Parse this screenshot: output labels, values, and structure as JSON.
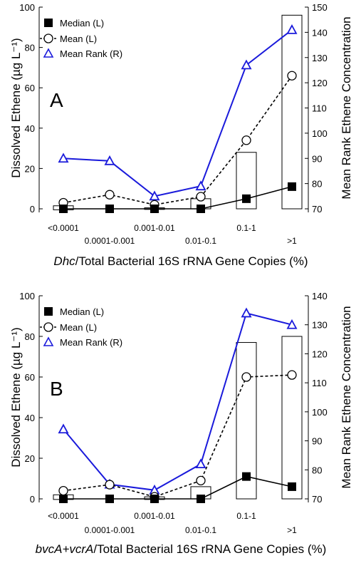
{
  "chart_data": [
    {
      "type": "line",
      "panel_label": "A",
      "xlabel_italic": "Dhc",
      "xlabel_rest": "/Total Bacterial 16S rRNA Gene Copies (%)",
      "ylabel": "Dissolved Ethene (µg L⁻¹)",
      "ylabel_right": "Mean Rank Ethene Concentration",
      "categories": [
        "<0.0001",
        "0.0001-0.001",
        "0.001-0.01",
        "0.01-0.1",
        "0.1-1",
        ">1"
      ],
      "ylim": [
        0,
        100
      ],
      "y_ticks": [
        0,
        20,
        40,
        60,
        80,
        100
      ],
      "y2lim": [
        70,
        150
      ],
      "y2_ticks": [
        70,
        80,
        90,
        100,
        110,
        120,
        130,
        140,
        150
      ],
      "legend": {
        "position": "top-left",
        "entries": [
          "Median (L)",
          "Mean (L)",
          "Mean Rank (R)"
        ]
      },
      "series": [
        {
          "name": "Median (L)",
          "axis": "left",
          "color": "#000000",
          "values": [
            0,
            0,
            0,
            0,
            5,
            11
          ]
        },
        {
          "name": "Mean (L)",
          "axis": "left",
          "color": "#000000",
          "values": [
            3,
            7,
            2,
            6,
            34,
            66
          ]
        },
        {
          "name": "Mean Rank (R)",
          "axis": "right",
          "color": "#1a1adb",
          "values": [
            90,
            89,
            75,
            79,
            127,
            141
          ]
        }
      ],
      "boxes": [
        [
          -0.5,
          1.5
        ],
        [
          null,
          null
        ],
        [
          -0.3,
          0.5
        ],
        [
          0,
          5
        ],
        [
          0,
          28
        ],
        [
          0,
          96
        ]
      ]
    },
    {
      "type": "line",
      "panel_label": "B",
      "xlabel_italic": "bvcA+vcrA",
      "xlabel_rest": "/Total Bacterial 16S rRNA Gene Copies (%)",
      "ylabel": "Dissolved Ethene (µg L⁻¹)",
      "ylabel_right": "Mean Rank Ethene Concentration",
      "categories": [
        "<0.0001",
        "0.0001-0.001",
        "0.001-0.01",
        "0.01-0.1",
        "0.1-1",
        ">1"
      ],
      "ylim": [
        0,
        100
      ],
      "y_ticks": [
        0,
        20,
        40,
        60,
        80,
        100
      ],
      "y2lim": [
        70,
        140
      ],
      "y2_ticks": [
        70,
        80,
        90,
        100,
        110,
        120,
        130,
        140
      ],
      "legend": {
        "position": "top-left",
        "entries": [
          "Median (L)",
          "Mean (L)",
          "Mean Rank (R)"
        ]
      },
      "series": [
        {
          "name": "Median (L)",
          "axis": "left",
          "color": "#000000",
          "values": [
            0,
            0,
            0,
            0,
            11,
            6
          ]
        },
        {
          "name": "Mean (L)",
          "axis": "left",
          "color": "#000000",
          "values": [
            4,
            7,
            1,
            9,
            60,
            61
          ]
        },
        {
          "name": "Mean Rank (R)",
          "axis": "right",
          "color": "#1a1adb",
          "values": [
            94,
            75,
            73,
            82,
            134,
            130
          ]
        }
      ],
      "boxes": [
        [
          -0.3,
          2
        ],
        [
          null,
          null
        ],
        [
          -0.3,
          1
        ],
        [
          0,
          6
        ],
        [
          0,
          77
        ],
        [
          0,
          80
        ]
      ]
    }
  ]
}
